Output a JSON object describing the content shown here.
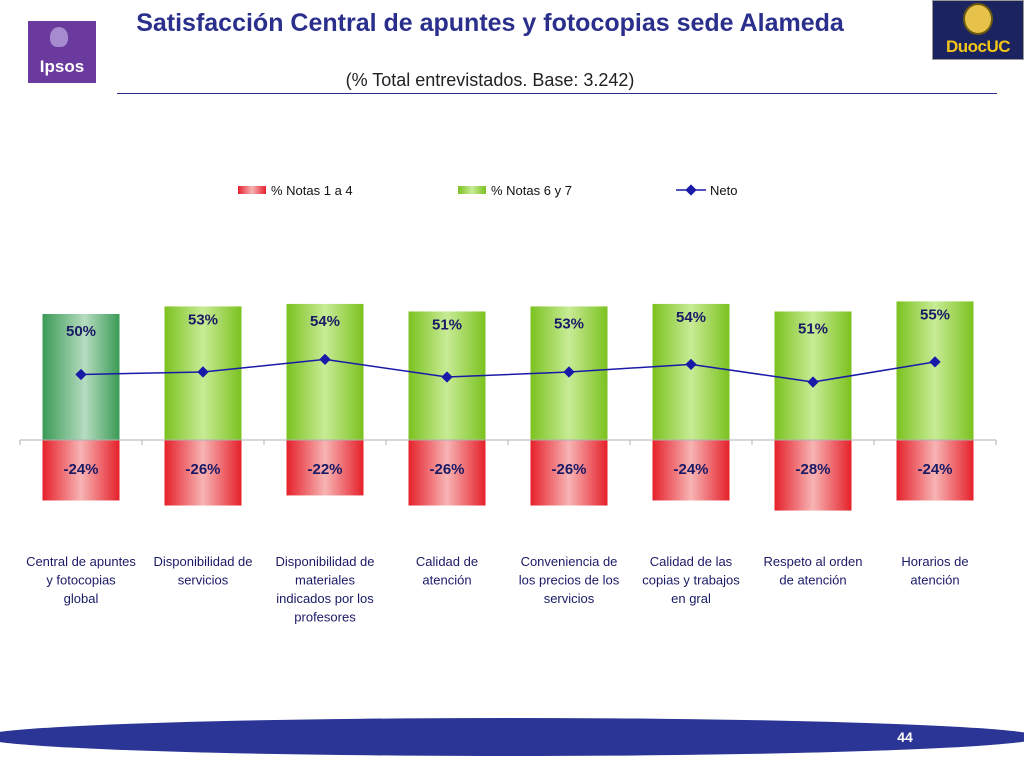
{
  "header": {
    "title": "Satisfacción Central de apuntes y fotocopias sede Alameda",
    "subtitle": "(% Total entrevistados. Base: 3.242)",
    "logo_left": "Ipsos",
    "logo_right": "DuocUC"
  },
  "footer": {
    "page_number": "44"
  },
  "chart_data": {
    "type": "bar",
    "title": "Satisfacción Central de apuntes y fotocopias sede Alameda",
    "categories": [
      "Central de apuntes y fotocopias global",
      "Disponibilidad de servicios",
      "Disponibilidad de materiales indicados por los profesores",
      "Calidad de atención",
      "Conveniencia de los precios de los servicios",
      "Calidad de las copias y trabajos en gral",
      "Respeto al orden de atención",
      "Horarios de atención"
    ],
    "series": [
      {
        "name": "% Notas 1 a 4",
        "type": "bar",
        "color": "#e8323a",
        "values": [
          -24,
          -26,
          -22,
          -26,
          -26,
          -24,
          -28,
          -24
        ],
        "labels": [
          "-24%",
          "-26%",
          "-22%",
          "-26%",
          "-26%",
          "-24%",
          "-28%",
          "-24%"
        ]
      },
      {
        "name": "% Notas 6 y 7",
        "type": "bar",
        "color": "#8ccc2c",
        "values": [
          50,
          53,
          54,
          51,
          53,
          54,
          51,
          55
        ],
        "labels": [
          "50%",
          "53%",
          "54%",
          "51%",
          "53%",
          "54%",
          "51%",
          "55%"
        ]
      },
      {
        "name": "Neto",
        "type": "line",
        "color": "#1a1aa8",
        "values": [
          26,
          27,
          32,
          25,
          27,
          30,
          23,
          31
        ]
      }
    ],
    "first_bar_color": "#3aa05a",
    "ylim": [
      -30,
      56
    ],
    "legend_position": "top",
    "xlabel": "",
    "ylabel": ""
  }
}
